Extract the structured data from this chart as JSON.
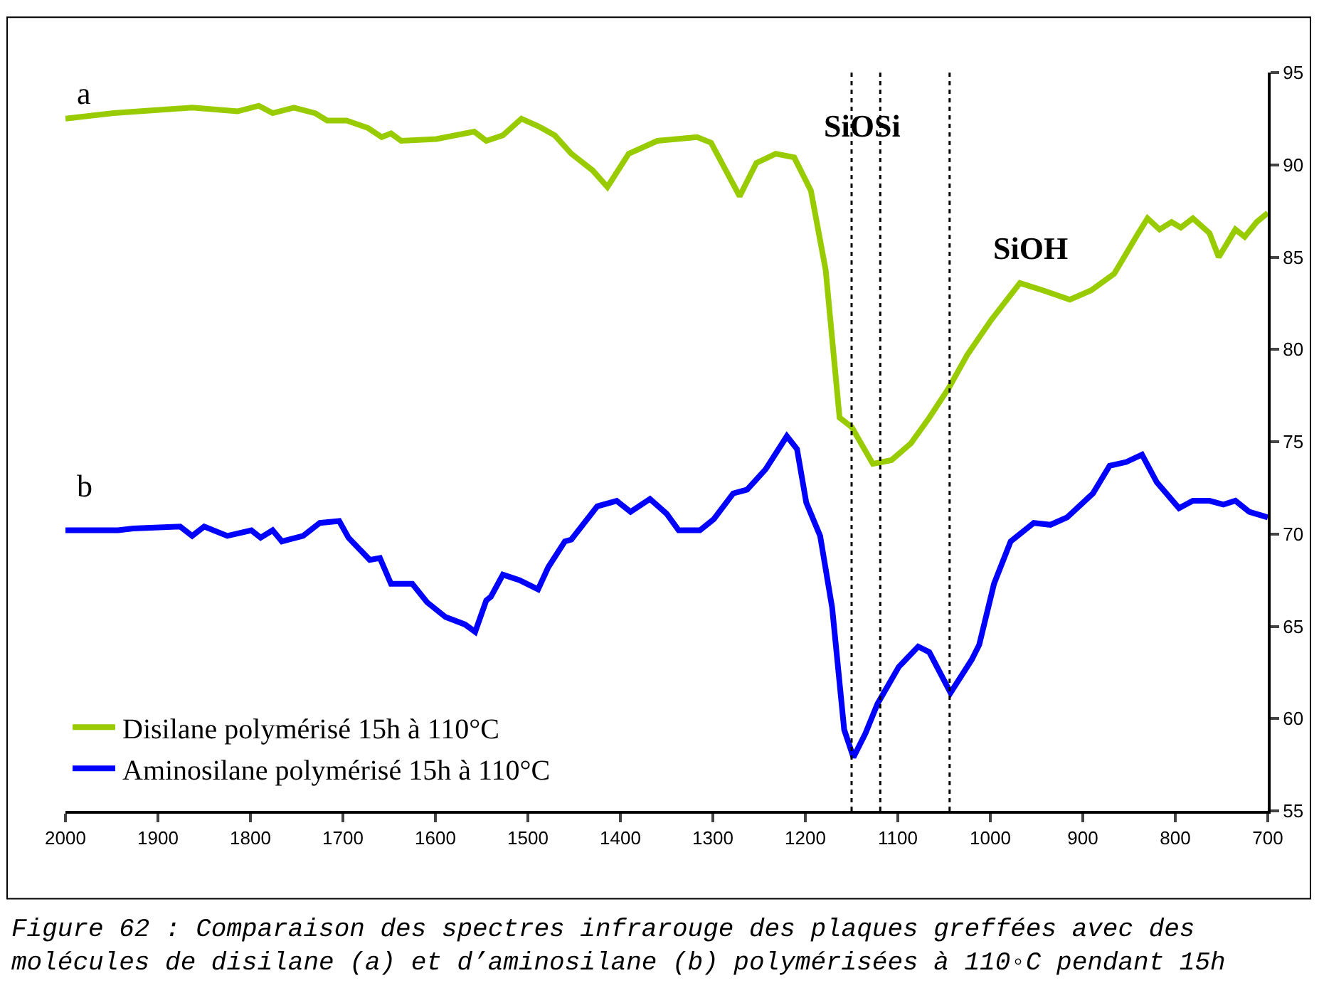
{
  "chart_data": {
    "type": "line",
    "xlim": [
      2000,
      700
    ],
    "xticks": [
      2000,
      1900,
      1800,
      1700,
      1600,
      1500,
      1400,
      1300,
      1200,
      1100,
      1000,
      900,
      800,
      700
    ],
    "ylim": [
      55,
      95
    ],
    "yticks": [
      55,
      60,
      65,
      70,
      75,
      80,
      85,
      90,
      95
    ],
    "grid": false,
    "legend": "bottom left",
    "marker": "none",
    "line_style": "solid",
    "series": [
      {
        "name": "Disilane polymérisé 15h à 110°C",
        "color": "#99cc00",
        "x": [
          2000,
          1948,
          1863,
          1814,
          1791,
          1776,
          1753,
          1730,
          1717,
          1696,
          1673,
          1658,
          1648,
          1637,
          1599,
          1558,
          1545,
          1527,
          1507,
          1489,
          1471,
          1453,
          1430,
          1414,
          1391,
          1360,
          1317,
          1302,
          1271,
          1253,
          1232,
          1212,
          1194,
          1178,
          1166,
          1163,
          1150,
          1127,
          1107,
          1086,
          1066,
          1045,
          1025,
          999,
          968,
          943,
          914,
          891,
          866,
          840,
          830,
          817,
          804,
          794,
          781,
          763,
          753,
          735,
          725,
          712,
          700
        ],
        "values": [
          92.5,
          92.8,
          93.1,
          92.9,
          93.2,
          92.8,
          93.1,
          92.8,
          92.4,
          92.4,
          92.0,
          91.5,
          91.7,
          91.3,
          91.4,
          91.8,
          91.3,
          91.6,
          92.5,
          92.1,
          91.6,
          90.6,
          89.7,
          88.8,
          90.6,
          91.3,
          91.5,
          91.2,
          88.3,
          90.1,
          90.6,
          90.4,
          88.6,
          84.3,
          77.9,
          76.3,
          75.8,
          73.8,
          74.0,
          74.9,
          76.3,
          77.9,
          79.7,
          81.6,
          83.6,
          83.2,
          82.7,
          83.2,
          84.1,
          86.3,
          87.1,
          86.5,
          86.9,
          86.6,
          87.1,
          86.3,
          85.0,
          86.5,
          86.1,
          86.9,
          87.4
        ]
      },
      {
        "name": "Aminosilane polymérisé 15h à 110°C",
        "color": "#0000ff",
        "x": [
          2000,
          1943,
          1927,
          1876,
          1863,
          1850,
          1825,
          1799,
          1789,
          1776,
          1766,
          1743,
          1725,
          1704,
          1694,
          1671,
          1660,
          1648,
          1625,
          1609,
          1589,
          1568,
          1557,
          1545,
          1540,
          1527,
          1509,
          1489,
          1478,
          1460,
          1453,
          1425,
          1404,
          1389,
          1368,
          1350,
          1337,
          1314,
          1299,
          1278,
          1263,
          1243,
          1220,
          1209,
          1199,
          1184,
          1171,
          1158,
          1148,
          1135,
          1122,
          1099,
          1078,
          1066,
          1043,
          1020,
          1012,
          996,
          978,
          953,
          935,
          917,
          889,
          871,
          853,
          836,
          820,
          796,
          781,
          763,
          748,
          735,
          720,
          700
        ],
        "values": [
          70.2,
          70.2,
          70.3,
          70.4,
          69.9,
          70.4,
          69.9,
          70.2,
          69.8,
          70.2,
          69.6,
          69.9,
          70.6,
          70.7,
          69.8,
          68.6,
          68.7,
          67.3,
          67.3,
          66.3,
          65.5,
          65.1,
          64.7,
          66.4,
          66.6,
          67.8,
          67.5,
          67.0,
          68.2,
          69.6,
          69.7,
          71.5,
          71.8,
          71.2,
          71.9,
          71.1,
          70.2,
          70.2,
          70.8,
          72.2,
          72.4,
          73.5,
          75.3,
          74.6,
          71.7,
          69.9,
          66.0,
          59.4,
          57.9,
          59.2,
          60.8,
          62.8,
          63.9,
          63.6,
          61.4,
          63.2,
          64.0,
          67.3,
          69.6,
          70.6,
          70.5,
          70.9,
          72.2,
          73.7,
          73.9,
          74.3,
          72.8,
          71.4,
          71.8,
          71.8,
          71.6,
          71.8,
          71.2,
          70.9
        ]
      }
    ],
    "ref_lines": [
      {
        "axis": "x",
        "value": 1150,
        "color": "#000000",
        "line_style": "dotted"
      },
      {
        "axis": "x",
        "value": 1119,
        "color": "#000000",
        "line_style": "dotted"
      },
      {
        "axis": "x",
        "value": 1044,
        "color": "#000000",
        "line_style": "dotted"
      }
    ],
    "annotations": [
      "a",
      "b",
      "SiOSi",
      "SiOH",
      "Figure 62 : Comparaison des spectres infrarouge des plaques greffées avec des\nmolécules de disilane (a) et d’aminosilane (b) polymérisées à 110◦C pendant 15h"
    ]
  }
}
